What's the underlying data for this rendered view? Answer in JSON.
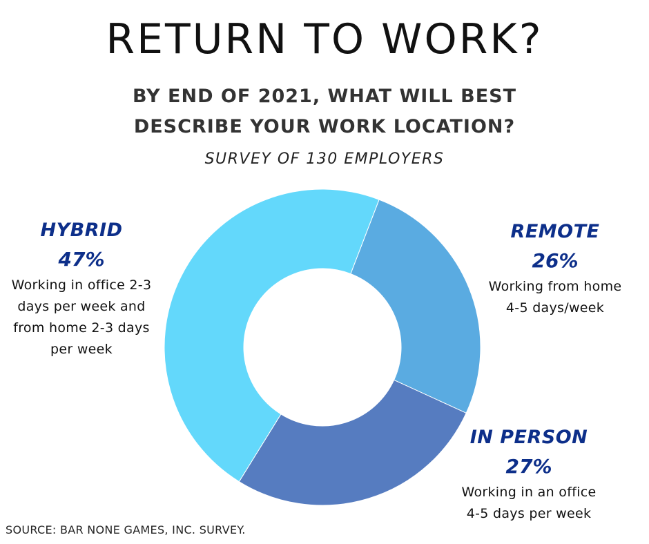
{
  "title": "RETURN TO WORK?",
  "subtitle_line1": "BY END OF 2021, WHAT WILL BEST",
  "subtitle_line2": "DESCRIBE YOUR WORK LOCATION?",
  "survey_note": "SURVEY OF 130 EMPLOYERS",
  "source": "SOURCE: BAR NONE GAMES, INC. SURVEY.",
  "chart_data": {
    "type": "pie",
    "variant": "donut",
    "categories": [
      "REMOTE",
      "IN PERSON",
      "HYBRID"
    ],
    "values": [
      26,
      27,
      47
    ],
    "value_labels": [
      "26%",
      "27%",
      "47%"
    ],
    "colors": [
      "#5aabe1",
      "#567cc0",
      "#63d8fb"
    ],
    "descriptions": [
      [
        "Working from home",
        "4-5 days/week"
      ],
      [
        "Working in an office",
        "4-5 days per week"
      ],
      [
        "Working in office 2-3",
        "days per week and",
        "from home 2-3 days",
        "per week"
      ]
    ],
    "label_color": "#0d2f8a"
  }
}
